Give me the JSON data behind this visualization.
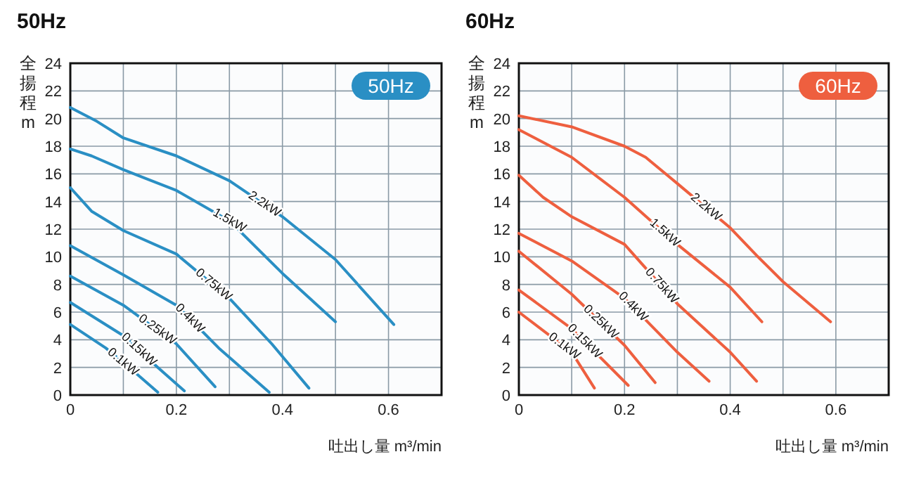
{
  "chart_data": [
    {
      "type": "line",
      "title": "50Hz",
      "xlabel": "吐出し量 m³/min",
      "ylabel": "全揚程 m",
      "xlim": [
        0,
        0.7
      ],
      "ylim": [
        0,
        24
      ],
      "xticks": [
        0,
        {
          "value": 0.1,
          "label": null
        },
        0.2,
        {
          "value": 0.3,
          "label": null
        },
        0.4,
        {
          "value": 0.5,
          "label": null
        },
        0.6
      ],
      "yticks": [
        0,
        2,
        4,
        6,
        8,
        10,
        12,
        14,
        16,
        18,
        20,
        22,
        24
      ],
      "grid": true,
      "series": [
        {
          "name": "2.2kW",
          "color": "#2a8fc4",
          "x": [
            0,
            0.05,
            0.1,
            0.2,
            0.3,
            0.4,
            0.5,
            0.61
          ],
          "values": [
            20.8,
            19.8,
            18.6,
            17.3,
            15.5,
            12.9,
            9.8,
            5.1
          ]
        },
        {
          "name": "1.5kW",
          "color": "#2a8fc4",
          "x": [
            0,
            0.04,
            0.1,
            0.2,
            0.3,
            0.4,
            0.5
          ],
          "values": [
            17.8,
            17.3,
            16.3,
            14.8,
            12.6,
            8.8,
            5.3
          ]
        },
        {
          "name": "0.75kW",
          "color": "#2a8fc4",
          "x": [
            0,
            0.04,
            0.1,
            0.2,
            0.3,
            0.38,
            0.45
          ],
          "values": [
            15.0,
            13.3,
            11.9,
            10.2,
            7.0,
            3.7,
            0.5
          ]
        },
        {
          "name": "0.4kW",
          "color": "#2a8fc4",
          "x": [
            0,
            0.1,
            0.2,
            0.28,
            0.375
          ],
          "values": [
            10.8,
            8.7,
            6.5,
            3.4,
            0.2
          ]
        },
        {
          "name": "0.25kW",
          "color": "#2a8fc4",
          "x": [
            0,
            0.1,
            0.2,
            0.273
          ],
          "values": [
            8.6,
            6.5,
            3.7,
            0.6
          ]
        },
        {
          "name": "0.15kW",
          "color": "#2a8fc4",
          "x": [
            0,
            0.1,
            0.165,
            0.215
          ],
          "values": [
            6.7,
            4.3,
            2.0,
            0.3
          ]
        },
        {
          "name": "0.1kW",
          "color": "#2a8fc4",
          "x": [
            0,
            0.067,
            0.12,
            0.165
          ],
          "values": [
            5.1,
            3.4,
            1.7,
            0.2
          ]
        }
      ],
      "annotations": [
        "50Hz"
      ]
    },
    {
      "type": "line",
      "title": "60Hz",
      "xlabel": "吐出し量 m³/min",
      "ylabel": "全揚程 m",
      "xlim": [
        0,
        0.7
      ],
      "ylim": [
        0,
        24
      ],
      "xticks": [
        0,
        {
          "value": 0.1,
          "label": null
        },
        0.2,
        {
          "value": 0.3,
          "label": null
        },
        0.4,
        {
          "value": 0.5,
          "label": null
        },
        0.6
      ],
      "yticks": [
        0,
        2,
        4,
        6,
        8,
        10,
        12,
        14,
        16,
        18,
        20,
        22,
        24
      ],
      "grid": true,
      "series": [
        {
          "name": "2.2kW",
          "color": "#ee5f3f",
          "x": [
            0,
            0.1,
            0.2,
            0.24,
            0.3,
            0.4,
            0.45,
            0.5,
            0.59
          ],
          "values": [
            20.2,
            19.4,
            18.0,
            17.2,
            15.3,
            12.1,
            10.1,
            8.2,
            5.3
          ]
        },
        {
          "name": "1.5kW",
          "color": "#ee5f3f",
          "x": [
            0,
            0.1,
            0.2,
            0.3,
            0.4,
            0.46
          ],
          "values": [
            19.2,
            17.2,
            14.3,
            10.9,
            7.8,
            5.3
          ]
        },
        {
          "name": "0.75kW",
          "color": "#ee5f3f",
          "x": [
            0,
            0.046,
            0.1,
            0.2,
            0.3,
            0.4,
            0.45
          ],
          "values": [
            15.9,
            14.3,
            12.9,
            10.9,
            6.6,
            3.1,
            1.0
          ]
        },
        {
          "name": "0.4kW",
          "color": "#ee5f3f",
          "x": [
            0,
            0.1,
            0.2,
            0.3,
            0.36
          ],
          "values": [
            11.7,
            9.7,
            7.0,
            3.1,
            1.0
          ]
        },
        {
          "name": "0.25kW",
          "color": "#ee5f3f",
          "x": [
            0,
            0.1,
            0.2,
            0.258
          ],
          "values": [
            10.4,
            7.3,
            3.6,
            0.9
          ]
        },
        {
          "name": "0.15kW",
          "color": "#ee5f3f",
          "x": [
            0,
            0.1,
            0.207
          ],
          "values": [
            7.6,
            4.8,
            0.7
          ]
        },
        {
          "name": "0.1kW",
          "color": "#ee5f3f",
          "x": [
            0,
            0.1,
            0.143
          ],
          "values": [
            6.0,
            3.1,
            0.5
          ]
        }
      ],
      "annotations": [
        "60Hz"
      ]
    }
  ]
}
